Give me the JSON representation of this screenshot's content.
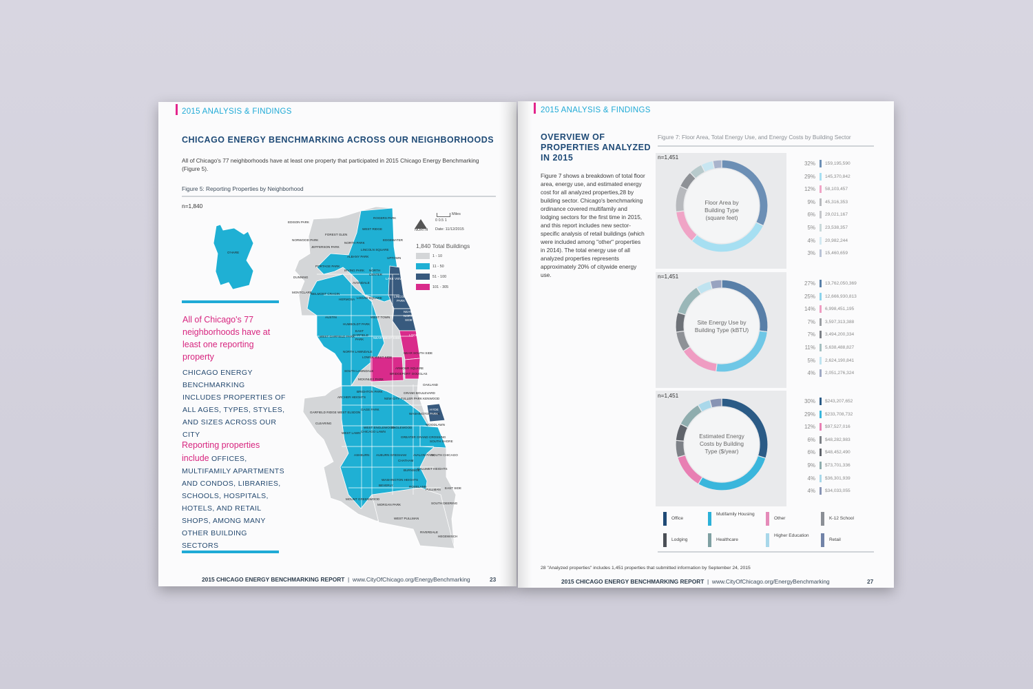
{
  "left_page": {
    "section": "2015 ANALYSIS & FINDINGS",
    "title": "CHICAGO ENERGY BENCHMARKING ACROSS OUR NEIGHBORHOODS",
    "intro_line1": "All of Chicago's 77 neighborhoods have at least one property that participated in 2015 Chicago Energy Benchmarking",
    "intro_line2": "(Figure 5).",
    "figure_title": "Figure 5: Reporting Properties by Neighborhood",
    "n": "n=1,840",
    "map": {
      "north_label": "NORTH",
      "miles_label": "Miles",
      "scale_label": "0  0.5  1",
      "date": "Date: 11/12/2015",
      "total": "1,840 Total Buildings",
      "legend": [
        {
          "label": "1 - 10",
          "color": "#d4d6d8"
        },
        {
          "label": "11 - 50",
          "color": "#1fb0d4"
        },
        {
          "label": "51 - 100",
          "color": "#385a7e"
        },
        {
          "label": "101 - 305",
          "color": "#d92b8b"
        }
      ],
      "neighborhoods": [
        "ROGERS PARK",
        "EDISON PARK",
        "WEST RIDGE",
        "FOREST GLEN",
        "NORTH PARK",
        "EDGEWATER",
        "NORWOOD PARK",
        "JEFFERSON PARK",
        "LINCOLN SQUARE",
        "ALBANY PARK",
        "UPTOWN",
        "O'HARE",
        "PORTAGE PARK",
        "IRVING PARK",
        "NORTH CENTER",
        "LAKE VIEW",
        "DUNNING",
        "AVONDALE",
        "MONTCLARE",
        "BELMONT CRAGIN",
        "HERMOSA",
        "LOGAN SQUARE",
        "LINCOLN PARK",
        "AUSTIN",
        "WEST TOWN",
        "NEAR NORTH SIDE",
        "HUMBOLDT PARK",
        "EAST GARFIELD PARK",
        "WEST GARFIELD PARK",
        "NEAR WEST SIDE",
        "LOOP",
        "NORTH LAWNDALE",
        "LOWER WEST SIDE",
        "NEAR SOUTH SIDE",
        "SOUTH LAWNDALE",
        "ARMOUR SQUARE",
        "BRIDGEPORT",
        "DOUGLAS",
        "MCKINLEY PARK",
        "OAKLAND",
        "BRIGHTON PARK",
        "GRAND BOULEVARD",
        "KENWOOD",
        "ARCHER HEIGHTS",
        "NEW CITY",
        "FULLER PARK",
        "WASHINGTON PARK",
        "HYDE PARK",
        "GARFIELD RIDGE",
        "WEST ELSDON",
        "GAGE PARK",
        "CLEARING",
        "WEST LAWN",
        "CHICAGO LAWN",
        "WEST ENGLEWOOD",
        "ENGLEWOOD",
        "WOODLAWN",
        "GREATER GRAND CROSSING",
        "SOUTH SHORE",
        "ASHBURN",
        "AUBURN GRESHAM",
        "CHATHAM",
        "AVALON PARK",
        "SOUTH CHICAGO",
        "BURNSIDE",
        "CALUMET HEIGHTS",
        "WASHINGTON HEIGHTS",
        "BEVERLY",
        "ROSELAND",
        "PULLMAN",
        "EAST SIDE",
        "MOUNT GREENWOOD",
        "MORGAN PARK",
        "SOUTH DEERING",
        "WEST PULLMAN",
        "RIVERDALE",
        "HEGEWISCH"
      ]
    },
    "callout_head": "All of Chicago's 77 neighborhoods have at least one reporting property",
    "callout_body": "CHICAGO ENERGY BENCHMARKING INCLUDES PROPERTIES OF ALL AGES, TYPES, STYLES, AND SIZES ACROSS OUR CITY",
    "callout2_pink": "Reporting properties include",
    "callout2_body": "OFFICES, MULTIFAMILY APARTMENTS AND CONDOS, LIBRARIES, SCHOOLS, HOSPITALS, HOTELS, AND RETAIL SHOPS, AMONG MANY OTHER BUILDING SECTORS",
    "footer_title": "2015 CHICAGO ENERGY BENCHMARKING REPORT",
    "footer_url": "www.CityOfChicago.org/EnergyBenchmarking",
    "page_number": "23"
  },
  "right_page": {
    "section": "2015 ANALYSIS & FINDINGS",
    "title": "OVERVIEW OF PROPERTIES ANALYZED IN 2015",
    "body": "Figure 7 shows a breakdown of total floor area, energy use, and estimated energy cost for all analyzed properties,28 by building sector. Chicago's benchmarking ordinance covered multifamily and lodging sectors for the first time in 2015, and this report includes new sector-specific analysis of retail buildings (which were included among \"other\" properties in 2014). The total energy use of all analyzed properties represents approximately 20% of citywide energy use.",
    "figure_title": "Figure 7: Floor Area, Total Energy Use, and Energy Costs by Building Sector",
    "footnote": "28  \"Analyzed properties\" includes 1,451 properties that submitted information by September 24, 2015",
    "footer_title": "2015 CHICAGO ENERGY BENCHMARKING REPORT",
    "footer_url": "www.CityOfChicago.org/EnergyBenchmarking",
    "page_number": "27"
  },
  "sector_colors": {
    "Office": "#1f4a76",
    "Mutifamily Housing": "#2cb1d8",
    "Other": "#e58bb9",
    "K-12 School": "#8b8f96",
    "Lodging": "#4b4f56",
    "Healthcare": "#7fa0a2",
    "Higher Education": "#a8d7ea",
    "Retail": "#7183a8"
  },
  "legend": [
    {
      "label": "Office",
      "color": "#1f4a76"
    },
    {
      "label": "Mutifamily Housing",
      "color": "#2cb1d8"
    },
    {
      "label": "Other",
      "color": "#e58bb9"
    },
    {
      "label": "K-12 School",
      "color": "#8b8f96"
    },
    {
      "label": "Lodging",
      "color": "#4b4f56"
    },
    {
      "label": "Healthcare",
      "color": "#7fa0a2"
    },
    {
      "label": "Higher Education",
      "color": "#a8d7ea"
    },
    {
      "label": "Retail",
      "color": "#7183a8"
    }
  ],
  "chart_data": [
    {
      "type": "pie",
      "title": "Floor Area by Building Type (square feet)",
      "n": "n=1,451",
      "values": [
        159195590,
        145370842,
        58103457,
        45316353,
        29021167,
        23538357,
        20982244,
        15460659
      ],
      "value_labels": [
        "159,195,590",
        "145,370,842",
        "58,103,457",
        "45,316,353",
        "29,021,167",
        "23,538,357",
        "20,982,244",
        "15,460,659"
      ],
      "percents": [
        "32%",
        "29%",
        "12%",
        "9%",
        "6%",
        "5%",
        "4%",
        "3%"
      ],
      "colors": [
        "#6c8fb5",
        "#a6dff2",
        "#f0a4c6",
        "#b7b9bd",
        "#c4c6ca",
        "#c9d9da",
        "#d3e9f2",
        "#b9c3d6"
      ],
      "ring_colors": [
        "#6c8fb5",
        "#a6dff2",
        "#f0a4c6",
        "#b7b9bd",
        "#8e9196",
        "#b8cacc",
        "#c8e6f1",
        "#a9b4cc"
      ]
    },
    {
      "type": "pie",
      "title": "Site Energy Use by Building Type (kBTU)",
      "n": "n=1,451",
      "values": [
        13762050369,
        12666930813,
        6998451195,
        3597313388,
        3494200334,
        5638488827,
        2624190841,
        2051276324
      ],
      "value_labels": [
        "13,762,050,369",
        "12,666,930,813",
        "6,998,451,195",
        "3,597,313,388",
        "3,494,200,334",
        "5,638,488,827",
        "2,624,190,841",
        "2,051,276,324"
      ],
      "percents": [
        "27%",
        "25%",
        "14%",
        "7%",
        "7%",
        "11%",
        "5%",
        "4%"
      ],
      "colors": [
        "#587fa8",
        "#8bd3ec",
        "#ef9cc2",
        "#9a9da2",
        "#7c8087",
        "#a4bfc0",
        "#bfe3f0",
        "#9fa9c4"
      ],
      "ring_colors": [
        "#587fa8",
        "#6fc7e6",
        "#ef9cc2",
        "#8e9196",
        "#6d7177",
        "#9ab7b8",
        "#bfe3f0",
        "#98a3c0"
      ]
    },
    {
      "type": "pie",
      "title": "Estimated Energy Costs by Building Type ($/year)",
      "n": "n=1,451",
      "values": [
        243207652,
        233708732,
        97527016,
        48282983,
        48452490,
        73701336,
        36301939,
        34033055
      ],
      "value_labels": [
        "$243,207,652",
        "$233,708,732",
        "$97,527,016",
        "$48,282,983",
        "$48,452,490",
        "$73,701,336",
        "$36,301,939",
        "$34,033,055"
      ],
      "percents": [
        "30%",
        "29%",
        "12%",
        "6%",
        "6%",
        "9%",
        "4%",
        "4%"
      ],
      "colors": [
        "#2b5b86",
        "#3ab6dc",
        "#e87fb3",
        "#7d8187",
        "#5f636a",
        "#8fadae",
        "#a9d8ea",
        "#8894b4"
      ],
      "ring_colors": [
        "#2b5b86",
        "#3ab6dc",
        "#e87fb3",
        "#7d8187",
        "#5f636a",
        "#8fadae",
        "#a9d8ea",
        "#8894b4"
      ]
    }
  ]
}
